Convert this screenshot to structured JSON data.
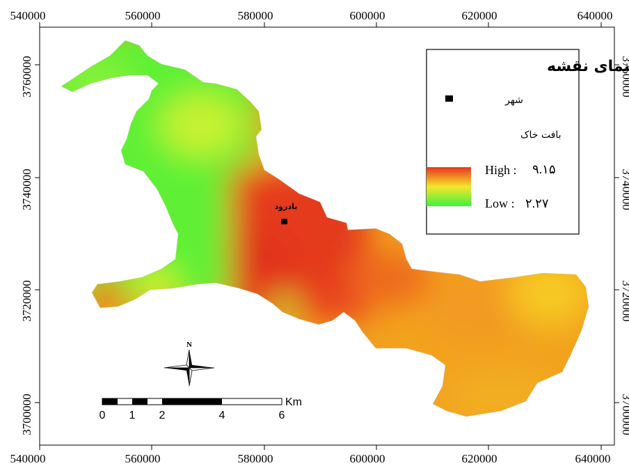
{
  "map": {
    "x_ticks": [
      "540000",
      "560000",
      "580000",
      "600000",
      "620000",
      "640000"
    ],
    "y_ticks": [
      "3760000",
      "3740000",
      "3720000",
      "3700000"
    ]
  },
  "legend": {
    "title": "راهنمای نقشه",
    "city_label": "شهر",
    "soil_label": "بافت خاک",
    "high_label": "High :",
    "high_value": "۹.۱۵",
    "low_label": "Low :",
    "low_value": "۲.۲۷"
  },
  "city": {
    "name": "بادرود"
  },
  "scale_bar": {
    "unit": "Km",
    "labels": [
      "0",
      "1",
      "2",
      "4",
      "6"
    ]
  },
  "north_arrow": {
    "label": "N"
  },
  "colors": {
    "high": "#e8361e",
    "mid": "#f5e62a",
    "low": "#3ff23c"
  }
}
